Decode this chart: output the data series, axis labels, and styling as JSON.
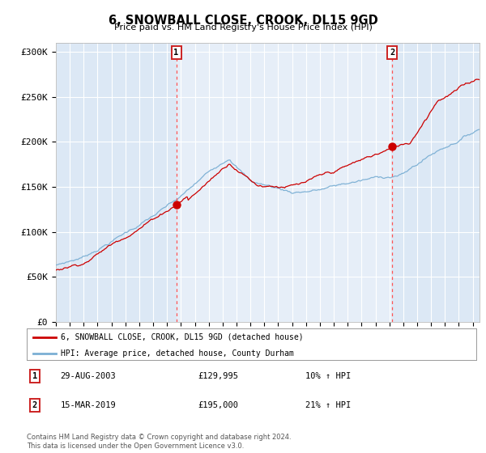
{
  "title": "6, SNOWBALL CLOSE, CROOK, DL15 9GD",
  "subtitle": "Price paid vs. HM Land Registry's House Price Index (HPI)",
  "legend_label_red": "6, SNOWBALL CLOSE, CROOK, DL15 9GD (detached house)",
  "legend_label_blue": "HPI: Average price, detached house, County Durham",
  "marker1_date": "29-AUG-2003",
  "marker1_price": 129995,
  "marker1_label": "1",
  "marker1_anno": "10% ↑ HPI",
  "marker2_date": "15-MAR-2019",
  "marker2_price": 195000,
  "marker2_label": "2",
  "marker2_anno": "21% ↑ HPI",
  "marker1_x": 2003.66,
  "marker2_x": 2019.2,
  "ylim": [
    0,
    310000
  ],
  "xlim_start": 1995.0,
  "xlim_end": 2025.5,
  "yticks": [
    0,
    50000,
    100000,
    150000,
    200000,
    250000,
    300000
  ],
  "ytick_labels": [
    "£0",
    "£50K",
    "£100K",
    "£150K",
    "£200K",
    "£250K",
    "£300K"
  ],
  "background_color": "#ffffff",
  "plot_bg_color": "#dce8f5",
  "grid_color": "#ffffff",
  "red_line_color": "#cc0000",
  "blue_line_color": "#7bafd4",
  "dashed_line_color": "#ff5555",
  "marker_color": "#cc0000",
  "footer_text": "Contains HM Land Registry data © Crown copyright and database right 2024.\nThis data is licensed under the Open Government Licence v3.0.",
  "xtick_years": [
    1995,
    1996,
    1997,
    1998,
    1999,
    2000,
    2001,
    2002,
    2003,
    2004,
    2005,
    2006,
    2007,
    2008,
    2009,
    2010,
    2011,
    2012,
    2013,
    2014,
    2015,
    2016,
    2017,
    2018,
    2019,
    2020,
    2021,
    2022,
    2023,
    2024,
    2025
  ]
}
